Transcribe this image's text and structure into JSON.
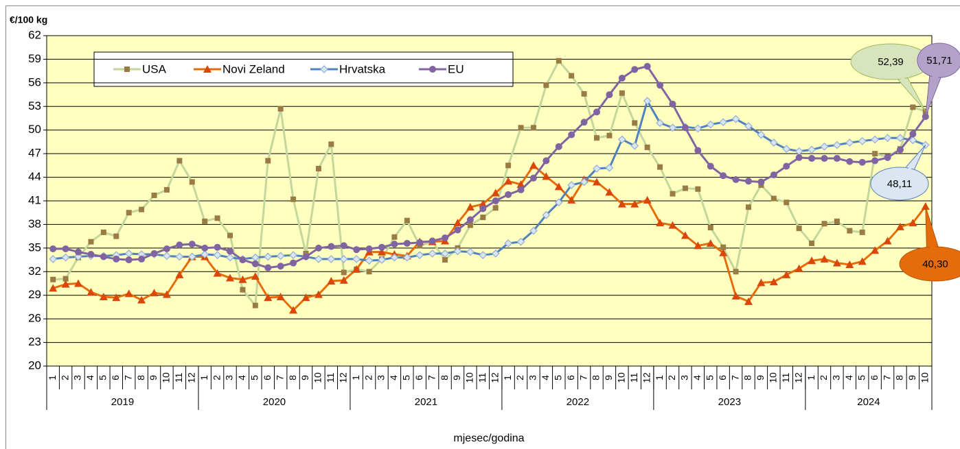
{
  "chart_data": {
    "type": "line",
    "y_axis_label": "€/100 kg",
    "x_axis_label": "mjesec/godina",
    "categories": [
      "1",
      "2",
      "3",
      "4",
      "5",
      "6",
      "7",
      "8",
      "9",
      "10",
      "11",
      "12",
      "1",
      "2",
      "3",
      "4",
      "5",
      "6",
      "7",
      "8",
      "9",
      "10",
      "11",
      "12",
      "1",
      "2",
      "3",
      "4",
      "5",
      "6",
      "7",
      "8",
      "9",
      "10",
      "11",
      "12",
      "1",
      "2",
      "3",
      "4",
      "5",
      "6",
      "7",
      "8",
      "9",
      "10",
      "11",
      "12",
      "1",
      "2",
      "3",
      "4",
      "5",
      "6",
      "7",
      "8",
      "9",
      "10",
      "11",
      "12",
      "1",
      "2",
      "3",
      "4",
      "5",
      "6",
      "7",
      "8",
      "9",
      "10"
    ],
    "years": [
      "2019",
      "2020",
      "2021",
      "2022",
      "2023",
      "2024"
    ],
    "ylim": [
      20,
      62
    ],
    "yticks": [
      20,
      23,
      26,
      29,
      32,
      35,
      38,
      41,
      44,
      47,
      50,
      53,
      56,
      59,
      62
    ],
    "grid": true,
    "series": [
      {
        "name": "USA",
        "color": "#c3d69b",
        "marker": "square",
        "marker_color": "#9b7b44",
        "values": [
          31.0,
          31.1,
          33.8,
          35.8,
          37.0,
          36.5,
          39.5,
          39.9,
          41.7,
          42.4,
          46.1,
          43.4,
          38.4,
          38.8,
          36.6,
          29.7,
          27.7,
          46.1,
          52.7,
          41.2,
          34.3,
          45.1,
          48.2,
          31.9,
          32.3,
          32.0,
          33.6,
          36.4,
          38.5,
          35.3,
          35.8,
          33.5,
          35.0,
          37.9,
          38.9,
          40.1,
          45.5,
          50.3,
          50.3,
          55.7,
          58.8,
          56.9,
          54.6,
          49.0,
          49.3,
          54.7,
          50.9,
          47.8,
          45.3,
          41.9,
          42.6,
          42.5,
          37.6,
          35.1,
          32.0,
          40.2,
          43.0,
          41.3,
          40.8,
          37.5,
          35.6,
          38.1,
          38.4,
          37.2,
          37.0,
          47.0,
          46.6,
          47.6,
          52.9,
          52.39
        ],
        "value_labels": [
          null,
          null,
          null,
          null,
          null,
          null,
          null,
          null,
          null,
          null,
          null,
          null,
          null,
          null,
          null,
          null,
          null,
          null,
          null,
          null,
          null,
          null,
          null,
          null,
          null,
          null,
          null,
          null,
          null,
          null,
          null,
          null,
          null,
          null,
          null,
          null,
          null,
          null,
          null,
          null,
          null,
          null,
          null,
          null,
          null,
          null,
          null,
          null,
          null,
          null,
          null,
          null,
          null,
          null,
          null,
          null,
          null,
          null,
          null,
          null,
          null,
          null,
          null,
          null,
          null,
          null,
          null,
          null,
          null,
          "52,39"
        ]
      },
      {
        "name": "Novi Zeland",
        "color": "#e46c0a",
        "marker": "triangle",
        "marker_color": "#d9470a",
        "values": [
          29.9,
          30.4,
          30.5,
          29.4,
          28.8,
          28.7,
          29.2,
          28.4,
          29.3,
          29.1,
          31.6,
          33.9,
          33.9,
          31.8,
          31.2,
          31.0,
          31.4,
          28.7,
          28.8,
          27.1,
          28.7,
          29.1,
          30.8,
          30.9,
          32.3,
          34.5,
          34.5,
          34.2,
          34.0,
          35.8,
          35.8,
          35.9,
          38.2,
          40.2,
          40.6,
          42.0,
          43.5,
          43.1,
          45.5,
          44.1,
          42.8,
          41.1,
          43.7,
          43.4,
          42.1,
          40.6,
          40.6,
          41.1,
          38.2,
          37.9,
          36.6,
          35.3,
          35.6,
          34.4,
          28.9,
          28.2,
          30.6,
          30.7,
          31.6,
          32.4,
          33.4,
          33.6,
          33.1,
          32.9,
          33.3,
          34.7,
          35.9,
          37.7,
          38.2,
          40.3
        ],
        "value_labels": [
          null,
          null,
          null,
          null,
          null,
          null,
          null,
          null,
          null,
          null,
          null,
          null,
          null,
          null,
          null,
          null,
          null,
          null,
          null,
          null,
          null,
          null,
          null,
          null,
          null,
          null,
          null,
          null,
          null,
          null,
          null,
          null,
          null,
          null,
          null,
          null,
          null,
          null,
          null,
          null,
          null,
          null,
          null,
          null,
          null,
          null,
          null,
          null,
          null,
          null,
          null,
          null,
          null,
          null,
          null,
          null,
          null,
          null,
          null,
          null,
          null,
          null,
          null,
          null,
          null,
          null,
          null,
          null,
          null,
          "40,30"
        ]
      },
      {
        "name": "Hrvatska",
        "color": "#4f81bd",
        "marker": "diamond",
        "marker_color": "#dce6f2",
        "values": [
          33.6,
          33.8,
          33.9,
          34.0,
          34.0,
          34.1,
          34.3,
          34.2,
          34.2,
          34.0,
          33.9,
          33.9,
          34.2,
          34.1,
          33.8,
          33.6,
          33.8,
          33.9,
          34.0,
          34.1,
          33.9,
          33.6,
          33.6,
          33.6,
          33.6,
          33.4,
          33.5,
          33.8,
          33.8,
          34.1,
          34.3,
          34.3,
          34.6,
          34.5,
          34.1,
          34.3,
          35.6,
          35.8,
          37.2,
          39.2,
          40.8,
          43.0,
          43.4,
          45.1,
          45.2,
          48.8,
          48.0,
          53.7,
          50.9,
          50.3,
          50.4,
          50.2,
          50.7,
          51.0,
          51.4,
          50.5,
          49.4,
          48.4,
          47.6,
          47.3,
          47.5,
          47.9,
          48.1,
          48.4,
          48.6,
          48.8,
          49.0,
          49.0,
          48.7,
          48.11
        ],
        "value_labels": [
          null,
          null,
          null,
          null,
          null,
          null,
          null,
          null,
          null,
          null,
          null,
          null,
          null,
          null,
          null,
          null,
          null,
          null,
          null,
          null,
          null,
          null,
          null,
          null,
          null,
          null,
          null,
          null,
          null,
          null,
          null,
          null,
          null,
          null,
          null,
          null,
          null,
          null,
          null,
          null,
          null,
          null,
          null,
          null,
          null,
          null,
          null,
          null,
          null,
          null,
          null,
          null,
          null,
          null,
          null,
          null,
          null,
          null,
          null,
          null,
          null,
          null,
          null,
          null,
          null,
          null,
          null,
          null,
          null,
          "48,11"
        ]
      },
      {
        "name": "EU",
        "color": "#8064a2",
        "marker": "circle",
        "marker_color": "#8064a2",
        "values": [
          34.9,
          34.9,
          34.5,
          34.2,
          33.9,
          33.6,
          33.5,
          33.6,
          34.3,
          34.9,
          35.4,
          35.5,
          35.0,
          35.1,
          34.6,
          33.5,
          33.0,
          32.5,
          32.7,
          33.1,
          33.9,
          35.0,
          35.2,
          35.3,
          34.8,
          34.9,
          35.1,
          35.5,
          35.6,
          35.7,
          35.9,
          36.3,
          37.3,
          38.6,
          40.0,
          41.0,
          41.8,
          42.4,
          43.9,
          46.1,
          47.9,
          49.4,
          51.0,
          52.3,
          54.5,
          56.6,
          57.7,
          58.1,
          55.7,
          53.3,
          50.3,
          47.4,
          45.4,
          44.2,
          43.7,
          43.5,
          43.4,
          44.3,
          45.4,
          46.5,
          46.4,
          46.4,
          46.4,
          46.0,
          45.9,
          46.1,
          46.5,
          47.5,
          49.5,
          51.71
        ],
        "value_labels": [
          null,
          null,
          null,
          null,
          null,
          null,
          null,
          null,
          null,
          null,
          null,
          null,
          null,
          null,
          null,
          null,
          null,
          null,
          null,
          null,
          null,
          null,
          null,
          null,
          null,
          null,
          null,
          null,
          null,
          null,
          null,
          null,
          null,
          null,
          null,
          null,
          null,
          null,
          null,
          null,
          null,
          null,
          null,
          null,
          null,
          null,
          null,
          null,
          null,
          null,
          null,
          null,
          null,
          null,
          null,
          null,
          null,
          null,
          null,
          null,
          null,
          null,
          null,
          null,
          null,
          null,
          null,
          null,
          null,
          "51,71"
        ]
      }
    ]
  }
}
